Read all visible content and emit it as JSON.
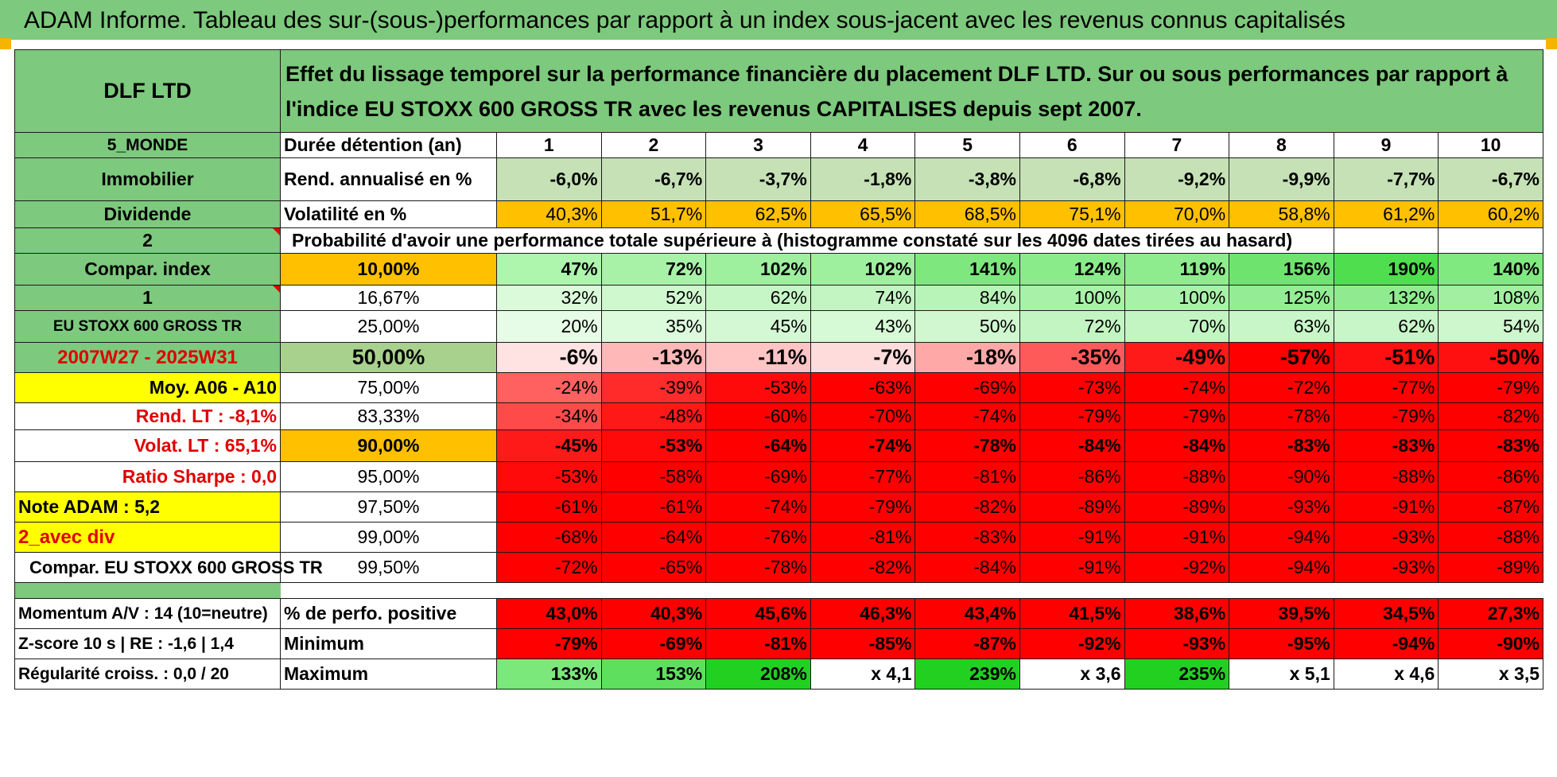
{
  "banner": "ADAM Informe. Tableau des sur-(sous-)performances par rapport à un index sous-jacent avec les revenus connus capitalisés",
  "fund": "DLF LTD",
  "description": "Effet du lissage temporel sur la performance financière du placement DLF LTD. Sur ou sous performances par rapport à l'indice EU STOXX 600 GROSS TR avec les revenus CAPITALISES depuis sept 2007.",
  "colors": {
    "green_header": "#7dc97d",
    "bright_green": "#22d022",
    "yellow": "#ffff00",
    "orange": "#ffc000",
    "red": "#ff0000"
  },
  "duration_label": "Durée détention (an)",
  "years": [
    "1",
    "2",
    "3",
    "4",
    "5",
    "6",
    "7",
    "8",
    "9",
    "10"
  ],
  "left_labels": {
    "zone": "5_MONDE",
    "type": "Immobilier",
    "dividend": "Dividende",
    "selector_a": "2",
    "compar_index": "Compar. index",
    "selector_b": "1",
    "index_name": "EU STOXX 600 GROSS TR",
    "period": "2007W27 - 2025W31",
    "avg": "Moy. A06 - A10",
    "rend_lt": "Rend. LT :    -8,1%",
    "volat_lt": "Volat. LT :    65,1%",
    "sharpe": "Ratio Sharpe :     0,0",
    "note": "Note ADAM : 5,2",
    "avec_div": "2_avec div",
    "compar_full": "Compar. EU STOXX 600 GROSS TR",
    "momentum": "Momentum A/V : 14 (10=neutre)",
    "zscore": "Z-score 10 s | RE : -1,6 | 1,4",
    "regularite": "Régularité croiss. : 0,0 / 20"
  },
  "rend_label": "Rend. annualisé en %",
  "rend": [
    "-6,0%",
    "-6,7%",
    "-3,7%",
    "-1,8%",
    "-3,8%",
    "-6,8%",
    "-9,2%",
    "-9,9%",
    "-7,7%",
    "-6,7%"
  ],
  "vol_label": "Volatilité en %",
  "vol": [
    "40,3%",
    "51,7%",
    "62,5%",
    "65,5%",
    "68,5%",
    "75,1%",
    "70,0%",
    "58,8%",
    "61,2%",
    "60,2%"
  ],
  "prob_label": "Probabilité d'avoir une performance totale supérieure à (histogramme constaté sur les 4096 dates tirées au hasard)",
  "quantiles": [
    {
      "q": "10,00%",
      "v": [
        "47%",
        "72%",
        "102%",
        "102%",
        "141%",
        "124%",
        "119%",
        "156%",
        "190%",
        "140%"
      ],
      "bg": [
        "#aef5ae",
        "#a8f2a8",
        "#9ef09e",
        "#9ef09e",
        "#7ee87e",
        "#8aeb8a",
        "#8eec8e",
        "#6ee46e",
        "#4ede4e",
        "#80e980"
      ]
    },
    {
      "q": "16,67%",
      "v": [
        "32%",
        "52%",
        "62%",
        "74%",
        "84%",
        "100%",
        "100%",
        "125%",
        "132%",
        "108%"
      ],
      "bg": [
        "#dafada",
        "#cff8cf",
        "#c6f6c6",
        "#c2f5c2",
        "#b8f3b8",
        "#a8f1a8",
        "#a8f1a8",
        "#94ec94",
        "#90eb90",
        "#a2efa2"
      ]
    },
    {
      "q": "25,00%",
      "v": [
        "20%",
        "35%",
        "45%",
        "43%",
        "50%",
        "72%",
        "70%",
        "63%",
        "62%",
        "54%"
      ],
      "bg": [
        "#e6fce6",
        "#dcfadc",
        "#d4f8d4",
        "#d6f9d6",
        "#d0f7d0",
        "#c2f5c2",
        "#c2f5c2",
        "#c8f6c8",
        "#c8f6c8",
        "#cef7ce"
      ]
    },
    {
      "q": "50,00%",
      "v": [
        "-6%",
        "-13%",
        "-11%",
        "-7%",
        "-18%",
        "-35%",
        "-49%",
        "-57%",
        "-51%",
        "-50%"
      ],
      "bg": [
        "#ffe2e2",
        "#ffb8b8",
        "#ffc4c4",
        "#ffdcdc",
        "#ffa8a8",
        "#ff5a5a",
        "#ff1a1a",
        "#ff0000",
        "#ff1010",
        "#ff1010"
      ]
    },
    {
      "q": "75,00%",
      "v": [
        "-24%",
        "-39%",
        "-53%",
        "-63%",
        "-69%",
        "-73%",
        "-74%",
        "-72%",
        "-77%",
        "-79%"
      ],
      "bg": [
        "#ff6060",
        "#ff2a2a",
        "#ff0a0a",
        "#ff0000",
        "#ff0000",
        "#ff0000",
        "#ff0000",
        "#ff0000",
        "#ff0000",
        "#ff0000"
      ]
    },
    {
      "q": "83,33%",
      "v": [
        "-34%",
        "-48%",
        "-60%",
        "-70%",
        "-74%",
        "-79%",
        "-79%",
        "-78%",
        "-79%",
        "-82%"
      ],
      "bg": [
        "#ff4a4a",
        "#ff1818",
        "#ff0000",
        "#ff0000",
        "#ff0000",
        "#ff0000",
        "#ff0000",
        "#ff0000",
        "#ff0000",
        "#ff0000"
      ]
    },
    {
      "q": "90,00%",
      "v": [
        "-45%",
        "-53%",
        "-64%",
        "-74%",
        "-78%",
        "-84%",
        "-84%",
        "-83%",
        "-83%",
        "-83%"
      ],
      "bg": [
        "#ff1a1a",
        "#ff0a0a",
        "#ff0000",
        "#ff0000",
        "#ff0000",
        "#ff0000",
        "#ff0000",
        "#ff0000",
        "#ff0000",
        "#ff0000"
      ]
    },
    {
      "q": "95,00%",
      "v": [
        "-53%",
        "-58%",
        "-69%",
        "-77%",
        "-81%",
        "-86%",
        "-88%",
        "-90%",
        "-88%",
        "-86%"
      ],
      "bg": [
        "#ff0a0a",
        "#ff0000",
        "#ff0000",
        "#ff0000",
        "#ff0000",
        "#ff0000",
        "#ff0000",
        "#ff0000",
        "#ff0000",
        "#ff0000"
      ]
    },
    {
      "q": "97,50%",
      "v": [
        "-61%",
        "-61%",
        "-74%",
        "-79%",
        "-82%",
        "-89%",
        "-89%",
        "-93%",
        "-91%",
        "-87%"
      ],
      "bg": [
        "#ff0000",
        "#ff0000",
        "#ff0000",
        "#ff0000",
        "#ff0000",
        "#ff0000",
        "#ff0000",
        "#ff0000",
        "#ff0000",
        "#ff0000"
      ]
    },
    {
      "q": "99,00%",
      "v": [
        "-68%",
        "-64%",
        "-76%",
        "-81%",
        "-83%",
        "-91%",
        "-91%",
        "-94%",
        "-93%",
        "-88%"
      ],
      "bg": [
        "#ff0000",
        "#ff0000",
        "#ff0000",
        "#ff0000",
        "#ff0000",
        "#ff0000",
        "#ff0000",
        "#ff0000",
        "#ff0000",
        "#ff0000"
      ]
    },
    {
      "q": "99,50%",
      "v": [
        "-72%",
        "-65%",
        "-78%",
        "-82%",
        "-84%",
        "-91%",
        "-92%",
        "-94%",
        "-93%",
        "-89%"
      ],
      "bg": [
        "#ff0000",
        "#ff0000",
        "#ff0000",
        "#ff0000",
        "#ff0000",
        "#ff0000",
        "#ff0000",
        "#ff0000",
        "#ff0000",
        "#ff0000"
      ]
    }
  ],
  "pos_label": "% de perfo. positive",
  "pos": [
    "43,0%",
    "40,3%",
    "45,6%",
    "46,3%",
    "43,4%",
    "41,5%",
    "38,6%",
    "39,5%",
    "34,5%",
    "27,3%"
  ],
  "min_label": "Minimum",
  "min": [
    "-79%",
    "-69%",
    "-81%",
    "-85%",
    "-87%",
    "-92%",
    "-93%",
    "-95%",
    "-94%",
    "-90%"
  ],
  "max_label": "Maximum",
  "max": [
    "133%",
    "153%",
    "208%",
    "x 4,1",
    "239%",
    "x 3,6",
    "235%",
    "x 5,1",
    "x 4,6",
    "x 3,5"
  ],
  "max_bg": [
    "#7ae87a",
    "#5ee05e",
    "#22d022",
    "#ffffff",
    "#22d022",
    "#ffffff",
    "#22d022",
    "#ffffff",
    "#ffffff",
    "#ffffff"
  ]
}
